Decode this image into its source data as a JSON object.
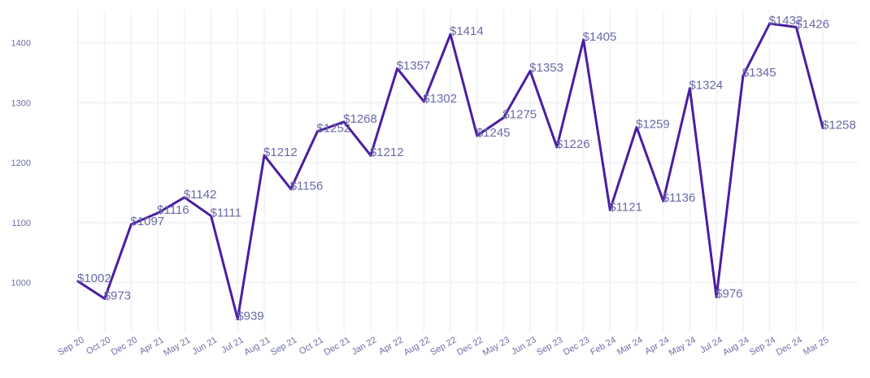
{
  "chart_data": {
    "type": "line",
    "title": "",
    "xlabel": "",
    "ylabel": "",
    "categories": [
      "Sep 20",
      "Oct 20",
      "Dec 20",
      "Apr 21",
      "May 21",
      "Jun 21",
      "Jul 21",
      "Aug 21",
      "Sep 21",
      "Oct 21",
      "Dec 21",
      "Jan 22",
      "Apr 22",
      "Aug 22",
      "Sep 22",
      "Dec 22",
      "May 23",
      "Jun 23",
      "Sep 23",
      "Dec 23",
      "Feb 24",
      "Mar 24",
      "Apr 24",
      "May 24",
      "Jul 24",
      "Aug 24",
      "Sep 24",
      "Dec 24",
      "Mar 25"
    ],
    "series": [
      {
        "values": [
          1002,
          973,
          1097,
          1116,
          1142,
          1111,
          939,
          1212,
          1156,
          1252,
          1268,
          1212,
          1357,
          1302,
          1414,
          1245,
          1275,
          1353,
          1226,
          1405,
          1121,
          1259,
          1136,
          1324,
          976,
          1345,
          1432,
          1426,
          1258
        ]
      }
    ],
    "data_labels": [
      "$1002",
      "$973",
      "$1097",
      "$1116",
      "$1142",
      "$1111",
      "$939",
      "$1212",
      "$1156",
      "$1252",
      "$1268",
      "$1212",
      "$1357",
      "$1302",
      "$1414",
      "$1245",
      "$1275",
      "$1353",
      "$1226",
      "$1405",
      "$1121",
      "$1259",
      "$1136",
      "$1324",
      "$976",
      "$1345",
      "$1432",
      "$1426",
      "$1258"
    ],
    "y_ticks": [
      1000,
      1100,
      1200,
      1300,
      1400
    ],
    "ylim": [
      918,
      1455
    ],
    "grid": true,
    "legend": "none",
    "colors": {
      "line": "#4a1ea0",
      "label": "#6a6aa8",
      "tick": "#6e6ea8",
      "grid": "#f4f4f8"
    }
  }
}
